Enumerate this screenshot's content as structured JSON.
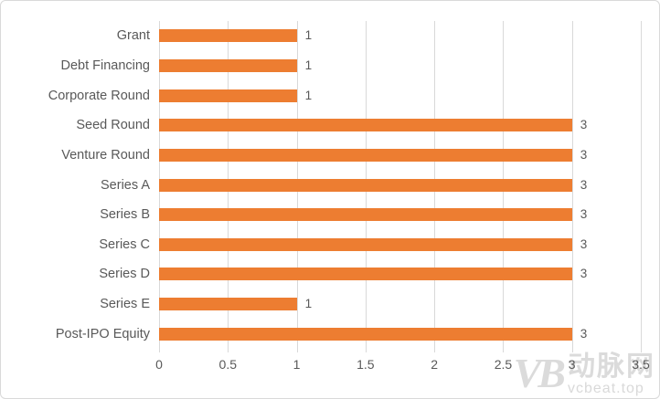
{
  "chart_data": {
    "type": "bar",
    "orientation": "horizontal",
    "title": "",
    "categories": [
      "Grant",
      "Debt Financing",
      "Corporate Round",
      "Seed Round",
      "Venture Round",
      "Series A",
      "Series B",
      "Series C",
      "Series D",
      "Series E",
      "Post-IPO Equity"
    ],
    "values": [
      1,
      1,
      1,
      3,
      3,
      3,
      3,
      3,
      3,
      1,
      3
    ],
    "data_labels": [
      "1",
      "1",
      "1",
      "3",
      "3",
      "3",
      "3",
      "3",
      "3",
      "1",
      "3"
    ],
    "xlim": [
      0,
      3.5
    ],
    "xticks": [
      0,
      0.5,
      1,
      1.5,
      2,
      2.5,
      3,
      3.5
    ],
    "xtick_labels": [
      "0",
      "0.5",
      "1",
      "1.5",
      "2",
      "2.5",
      "3",
      "3.5"
    ],
    "xlabel": "",
    "ylabel": "",
    "grid": "vertical",
    "legend": "none",
    "colors": {
      "bar": "#ED7D31",
      "gridline": "#D9D9D9",
      "text": "#595959",
      "background": "#FFFFFF",
      "border": "#D9D9D9"
    }
  },
  "watermark": {
    "logo": "VB",
    "brand": "动脉网",
    "url": "vcbeat.top",
    "color": "#DBDBDB"
  }
}
